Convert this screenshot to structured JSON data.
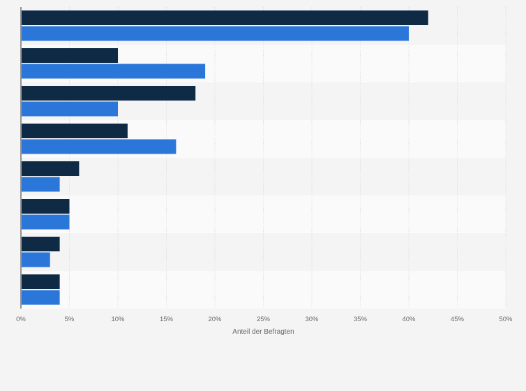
{
  "chart_data": {
    "type": "bar",
    "orientation": "horizontal",
    "xlabel": "Anteil der Befragten",
    "ylabel": "",
    "xlim": [
      0,
      50
    ],
    "x_ticks": [
      0,
      5,
      10,
      15,
      20,
      25,
      30,
      35,
      40,
      45,
      50
    ],
    "x_tick_labels": [
      "0%",
      "5%",
      "10%",
      "15%",
      "20%",
      "25%",
      "30%",
      "35%",
      "40%",
      "45%",
      "50%"
    ],
    "categories": [
      "",
      "",
      "",
      "",
      "",
      "",
      "",
      ""
    ],
    "series": [
      {
        "color": "#0f2a44",
        "values": [
          42,
          10,
          18,
          11,
          6,
          5,
          4,
          4
        ]
      },
      {
        "color": "#2b76d9",
        "values": [
          40,
          19,
          10,
          16,
          4,
          5,
          3,
          4
        ]
      }
    ],
    "grid": true,
    "legend": "none"
  }
}
